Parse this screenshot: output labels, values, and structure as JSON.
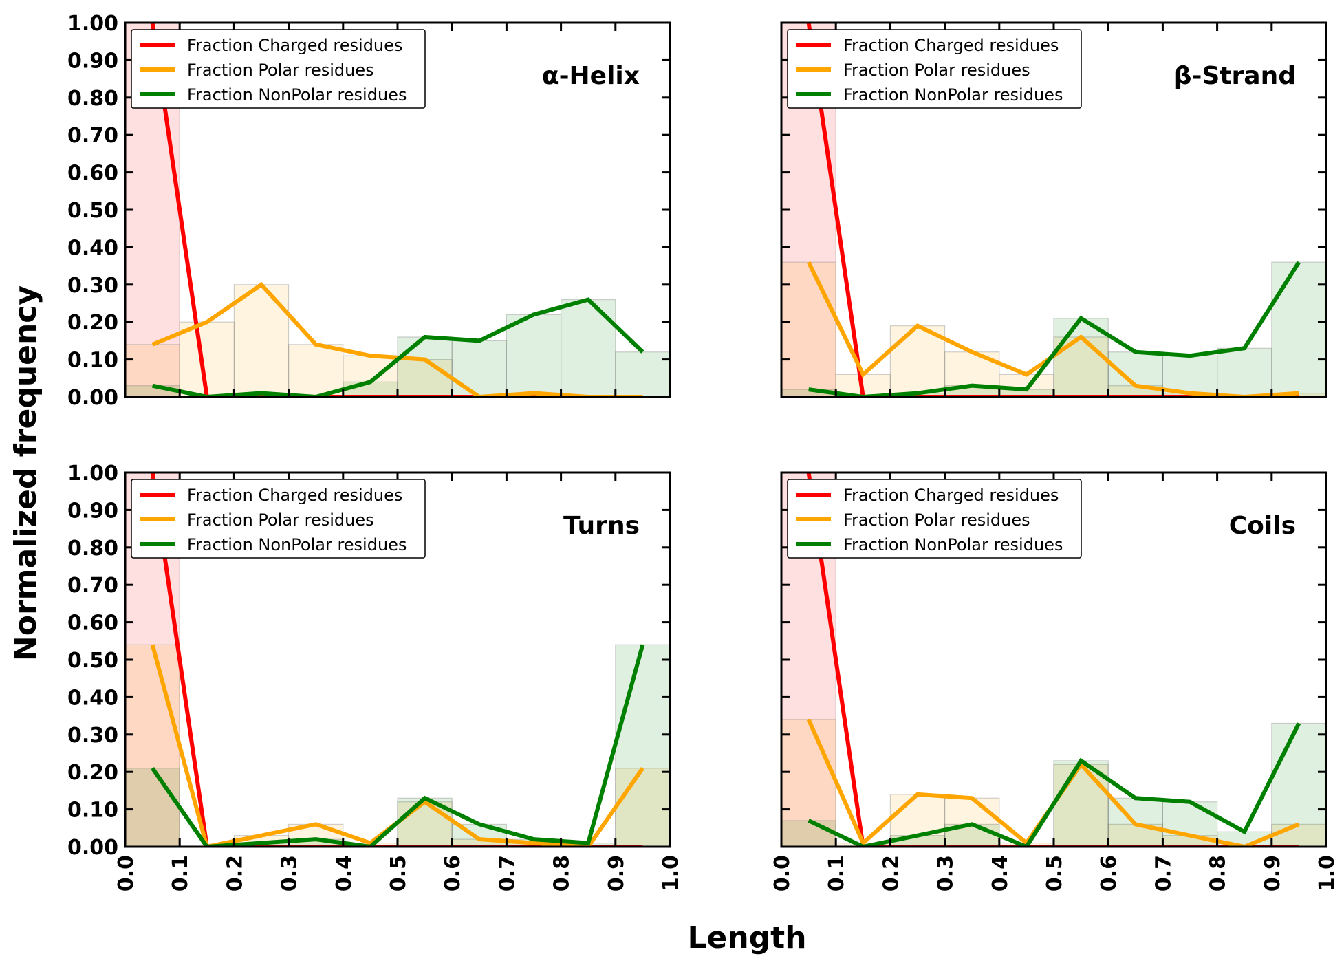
{
  "figure": {
    "ylabel": "Normalized frequency",
    "xlabel": "Length"
  },
  "chart_data": [
    {
      "type": "line",
      "title": "α-Helix",
      "xlim": [
        0,
        1
      ],
      "ylim": [
        0,
        1
      ],
      "x_ticks": [
        "0.0",
        "0.1",
        "0.2",
        "0.3",
        "0.4",
        "0.5",
        "0.6",
        "0.7",
        "0.8",
        "0.9",
        "1.0"
      ],
      "y_ticks": [
        "0.00",
        "0.10",
        "0.20",
        "0.30",
        "0.40",
        "0.50",
        "0.60",
        "0.70",
        "0.80",
        "0.90",
        "1.00"
      ],
      "show_x_tick_labels": false,
      "show_y_tick_labels": true,
      "legend_position": "top-left",
      "x": [
        0.05,
        0.15,
        0.25,
        0.35,
        0.45,
        0.55,
        0.65,
        0.75,
        0.85,
        0.95
      ],
      "series": [
        {
          "name": "Fraction Charged residues",
          "color": "#ff0000",
          "values": [
            1.0,
            0,
            0,
            0,
            0,
            0,
            0,
            0,
            0,
            0
          ]
        },
        {
          "name": "Fraction Polar residues",
          "color": "#ffa500",
          "values": [
            0.14,
            0.2,
            0.3,
            0.14,
            0.11,
            0.1,
            0,
            0.01,
            0,
            0
          ]
        },
        {
          "name": "Fraction NonPolar residues",
          "color": "#008000",
          "values": [
            0.03,
            0,
            0.01,
            0,
            0.04,
            0.16,
            0.15,
            0.22,
            0.26,
            0.12
          ]
        }
      ]
    },
    {
      "type": "line",
      "title": "β-Strand",
      "xlim": [
        0,
        1
      ],
      "ylim": [
        0,
        1
      ],
      "x_ticks": [
        "0.0",
        "0.1",
        "0.2",
        "0.3",
        "0.4",
        "0.5",
        "0.6",
        "0.7",
        "0.8",
        "0.9",
        "1.0"
      ],
      "y_ticks": [
        "0.00",
        "0.10",
        "0.20",
        "0.30",
        "0.40",
        "0.50",
        "0.60",
        "0.70",
        "0.80",
        "0.90",
        "1.00"
      ],
      "show_x_tick_labels": false,
      "show_y_tick_labels": false,
      "legend_position": "top-left",
      "x": [
        0.05,
        0.15,
        0.25,
        0.35,
        0.45,
        0.55,
        0.65,
        0.75,
        0.85,
        0.95
      ],
      "series": [
        {
          "name": "Fraction Charged residues",
          "color": "#ff0000",
          "values": [
            1.0,
            0,
            0,
            0,
            0,
            0,
            0,
            0,
            0,
            0
          ]
        },
        {
          "name": "Fraction Polar residues",
          "color": "#ffa500",
          "values": [
            0.36,
            0.06,
            0.19,
            0.12,
            0.06,
            0.16,
            0.03,
            0.01,
            0,
            0.01
          ]
        },
        {
          "name": "Fraction NonPolar residues",
          "color": "#008000",
          "values": [
            0.02,
            0,
            0.01,
            0.03,
            0.02,
            0.21,
            0.12,
            0.11,
            0.13,
            0.36
          ]
        }
      ]
    },
    {
      "type": "line",
      "title": "Turns",
      "xlim": [
        0,
        1
      ],
      "ylim": [
        0,
        1
      ],
      "x_ticks": [
        "0.0",
        "0.1",
        "0.2",
        "0.3",
        "0.4",
        "0.5",
        "0.6",
        "0.7",
        "0.8",
        "0.9",
        "1.0"
      ],
      "y_ticks": [
        "0.00",
        "0.10",
        "0.20",
        "0.30",
        "0.40",
        "0.50",
        "0.60",
        "0.70",
        "0.80",
        "0.90",
        "1.00"
      ],
      "show_x_tick_labels": true,
      "show_y_tick_labels": true,
      "legend_position": "top-left",
      "x": [
        0.05,
        0.15,
        0.25,
        0.35,
        0.45,
        0.55,
        0.65,
        0.75,
        0.85,
        0.95
      ],
      "series": [
        {
          "name": "Fraction Charged residues",
          "color": "#ff0000",
          "values": [
            1.0,
            0,
            0,
            0,
            0,
            0,
            0,
            0,
            0,
            0
          ]
        },
        {
          "name": "Fraction Polar residues",
          "color": "#ffa500",
          "values": [
            0.54,
            0,
            0.03,
            0.06,
            0.01,
            0.12,
            0.02,
            0.01,
            0,
            0.21
          ]
        },
        {
          "name": "Fraction NonPolar residues",
          "color": "#008000",
          "values": [
            0.21,
            0,
            0.01,
            0.02,
            0,
            0.13,
            0.06,
            0.02,
            0.01,
            0.54
          ]
        }
      ]
    },
    {
      "type": "line",
      "title": "Coils",
      "xlim": [
        0,
        1
      ],
      "ylim": [
        0,
        1
      ],
      "x_ticks": [
        "0.0",
        "0.1",
        "0.2",
        "0.3",
        "0.4",
        "0.5",
        "0.6",
        "0.7",
        "0.8",
        "0.9",
        "1.0"
      ],
      "y_ticks": [
        "0.00",
        "0.10",
        "0.20",
        "0.30",
        "0.40",
        "0.50",
        "0.60",
        "0.70",
        "0.80",
        "0.90",
        "1.00"
      ],
      "show_x_tick_labels": true,
      "show_y_tick_labels": false,
      "legend_position": "top-left",
      "x": [
        0.05,
        0.15,
        0.25,
        0.35,
        0.45,
        0.55,
        0.65,
        0.75,
        0.85,
        0.95
      ],
      "series": [
        {
          "name": "Fraction Charged residues",
          "color": "#ff0000",
          "values": [
            1.0,
            0,
            0,
            0,
            0,
            0,
            0,
            0,
            0,
            0
          ]
        },
        {
          "name": "Fraction Polar residues",
          "color": "#ffa500",
          "values": [
            0.34,
            0.01,
            0.14,
            0.13,
            0.01,
            0.22,
            0.06,
            0.03,
            0,
            0.06
          ]
        },
        {
          "name": "Fraction NonPolar residues",
          "color": "#008000",
          "values": [
            0.07,
            0,
            0.03,
            0.06,
            0,
            0.23,
            0.13,
            0.12,
            0.04,
            0.33
          ]
        }
      ]
    }
  ]
}
